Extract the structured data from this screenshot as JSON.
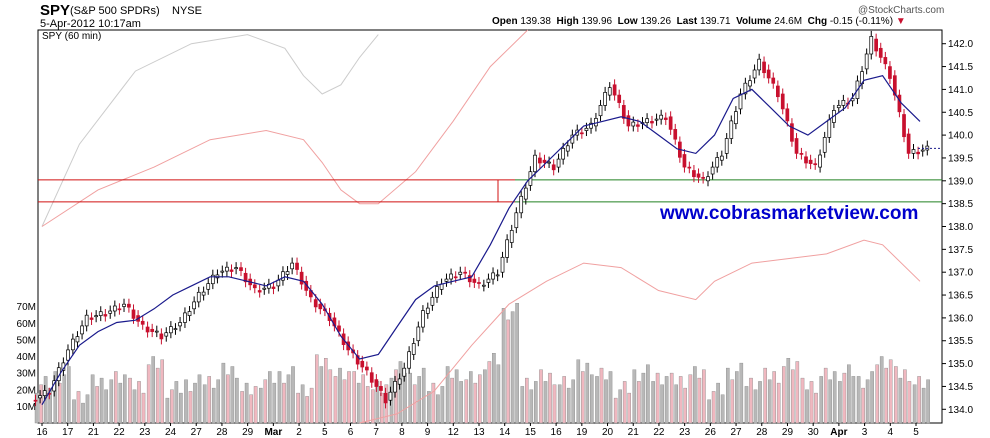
{
  "header": {
    "symbol": "SPY",
    "name": "(S&P 500 SPDRs)",
    "exchange": "NYSE",
    "datetime": "5-Apr-2012 10:17am",
    "copyright": "@StockCharts.com",
    "quote": {
      "open_label": "Open",
      "open": "139.38",
      "high_label": "High",
      "high": "139.96",
      "low_label": "Low",
      "low": "139.26",
      "last_label": "Last",
      "last": "139.71",
      "volume_label": "Volume",
      "volume": "24.6M",
      "chg_label": "Chg",
      "chg": "-0.15 (-0.11%)"
    },
    "series_label": "SPY (60 min)"
  },
  "watermark": "www.cobrasmarketview.com",
  "colors": {
    "up": "#000000",
    "down": "#c8102e",
    "ma": "#1a1a8c",
    "envelope": "#f0a0a0",
    "ghost": "#cccccc",
    "red_line": "#d01010",
    "green_line": "#208020",
    "watermark": "#0000cc",
    "vol_up": "#b8b8b8",
    "vol_down": "#f0b8c0"
  },
  "chart_data": {
    "type": "candlestick",
    "title": "SPY (60 min)",
    "price_axis": {
      "ticks": [
        "142.0",
        "141.5",
        "141.0",
        "140.5",
        "140.0",
        "139.5",
        "139.0",
        "138.5",
        "138.0",
        "137.5",
        "137.0",
        "136.5",
        "136.0",
        "135.5",
        "135.0",
        "134.5",
        "134.0"
      ],
      "range": [
        133.7,
        142.3
      ]
    },
    "volume_axis": {
      "ticks": [
        "70M",
        "60M",
        "50M",
        "40M",
        "30M",
        "20M",
        "10M"
      ],
      "range": [
        0,
        80
      ]
    },
    "x_ticks": [
      "16",
      "17",
      "21",
      "22",
      "23",
      "24",
      "27",
      "28",
      "29",
      "Mar",
      "2",
      "5",
      "6",
      "7",
      "8",
      "9",
      "12",
      "13",
      "14",
      "15",
      "16",
      "19",
      "20",
      "21",
      "22",
      "23",
      "26",
      "27",
      "28",
      "29",
      "30",
      "Apr",
      "3",
      "4",
      "5"
    ],
    "bold_x_ticks": [
      "Mar",
      "Apr"
    ],
    "horizontal_levels": [
      {
        "price": 139.02,
        "color": "red"
      },
      {
        "price": 138.54,
        "color": "red"
      },
      {
        "price": 139.02,
        "color": "green"
      },
      {
        "price": 138.54,
        "color": "green"
      }
    ],
    "close_path": [
      [
        0,
        134.4
      ],
      [
        1,
        135.3
      ],
      [
        2,
        136.0
      ],
      [
        3,
        136.1
      ],
      [
        4,
        136.3
      ],
      [
        5,
        135.8
      ],
      [
        6,
        135.6
      ],
      [
        7,
        135.9
      ],
      [
        8,
        136.5
      ],
      [
        9,
        137.0
      ],
      [
        10,
        137.1
      ],
      [
        11,
        136.6
      ],
      [
        12,
        136.7
      ],
      [
        13,
        137.2
      ],
      [
        14,
        136.4
      ],
      [
        15,
        136.0
      ],
      [
        16,
        135.3
      ],
      [
        17,
        134.8
      ],
      [
        18,
        134.2
      ],
      [
        19,
        134.9
      ],
      [
        20,
        136.1
      ],
      [
        21,
        136.8
      ],
      [
        22,
        137.0
      ],
      [
        23,
        136.7
      ],
      [
        24,
        137.0
      ],
      [
        25,
        138.3
      ],
      [
        26,
        139.5
      ],
      [
        27,
        139.3
      ],
      [
        28,
        140.0
      ],
      [
        29,
        140.2
      ],
      [
        30,
        141.1
      ],
      [
        31,
        140.2
      ],
      [
        32,
        140.3
      ],
      [
        33,
        140.4
      ],
      [
        34,
        139.3
      ],
      [
        35,
        139.0
      ],
      [
        36,
        139.6
      ],
      [
        37,
        140.9
      ],
      [
        38,
        141.6
      ],
      [
        39,
        140.9
      ],
      [
        40,
        139.6
      ],
      [
        41,
        139.3
      ],
      [
        42,
        140.6
      ],
      [
        43,
        140.8
      ],
      [
        44,
        142.1
      ],
      [
        45,
        141.3
      ],
      [
        46,
        139.6
      ],
      [
        47,
        139.7
      ]
    ],
    "ma_path": [
      [
        0,
        134.1
      ],
      [
        1,
        134.8
      ],
      [
        2,
        135.4
      ],
      [
        3,
        135.7
      ],
      [
        4,
        135.9
      ],
      [
        5,
        135.95
      ],
      [
        6,
        136.2
      ],
      [
        7,
        136.5
      ],
      [
        8,
        136.7
      ],
      [
        9,
        136.9
      ],
      [
        10,
        136.9
      ],
      [
        11,
        136.8
      ],
      [
        12,
        136.7
      ],
      [
        13,
        136.9
      ],
      [
        14,
        136.8
      ],
      [
        15,
        136.3
      ],
      [
        16,
        135.6
      ],
      [
        17,
        135.1
      ],
      [
        18,
        135.2
      ],
      [
        19,
        135.8
      ],
      [
        20,
        136.4
      ],
      [
        21,
        136.7
      ],
      [
        22,
        136.8
      ],
      [
        23,
        136.9
      ],
      [
        24,
        137.6
      ],
      [
        25,
        138.4
      ],
      [
        26,
        139.0
      ],
      [
        27,
        139.4
      ],
      [
        28,
        139.8
      ],
      [
        29,
        140.2
      ],
      [
        30,
        140.3
      ],
      [
        31,
        140.4
      ],
      [
        32,
        140.3
      ],
      [
        33,
        140.0
      ],
      [
        34,
        139.7
      ],
      [
        35,
        139.6
      ],
      [
        36,
        140.0
      ],
      [
        37,
        140.8
      ],
      [
        38,
        141.0
      ],
      [
        39,
        140.6
      ],
      [
        40,
        140.2
      ],
      [
        41,
        140.0
      ],
      [
        42,
        140.3
      ],
      [
        43,
        140.6
      ],
      [
        44,
        141.2
      ],
      [
        45,
        141.3
      ],
      [
        46,
        140.7
      ],
      [
        47,
        140.3
      ]
    ],
    "ghost_path": [
      [
        0,
        138.0
      ],
      [
        2,
        139.8
      ],
      [
        5,
        141.4
      ],
      [
        8,
        142.0
      ],
      [
        11,
        142.2
      ],
      [
        13,
        141.9
      ],
      [
        14,
        141.3
      ],
      [
        15,
        140.9
      ],
      [
        16,
        141.1
      ],
      [
        17,
        141.7
      ],
      [
        18,
        142.2
      ]
    ],
    "env_upper_path": [
      [
        0,
        138.0
      ],
      [
        3,
        138.8
      ],
      [
        6,
        139.3
      ],
      [
        9,
        139.9
      ],
      [
        12,
        140.1
      ],
      [
        14,
        139.9
      ],
      [
        15,
        139.4
      ],
      [
        16,
        138.8
      ],
      [
        17,
        138.5
      ],
      [
        18,
        138.5
      ],
      [
        20,
        139.2
      ],
      [
        22,
        140.3
      ],
      [
        24,
        141.5
      ],
      [
        26,
        142.3
      ]
    ],
    "env_lower_path": [
      [
        17,
        133.7
      ],
      [
        19,
        133.9
      ],
      [
        21,
        134.4
      ],
      [
        23,
        135.4
      ],
      [
        25,
        136.3
      ],
      [
        27,
        136.8
      ],
      [
        29,
        137.2
      ],
      [
        31,
        137.1
      ],
      [
        33,
        136.6
      ],
      [
        35,
        136.4
      ],
      [
        36,
        136.8
      ],
      [
        38,
        137.2
      ],
      [
        40,
        137.3
      ],
      [
        42,
        137.4
      ],
      [
        44,
        137.7
      ],
      [
        45,
        137.6
      ],
      [
        47,
        136.8
      ]
    ],
    "volume_levels": [
      24,
      30,
      18,
      26,
      28,
      22,
      35,
      20,
      24,
      26,
      32,
      20,
      27,
      30,
      22,
      38,
      30,
      26,
      20,
      32,
      28,
      22,
      30,
      27,
      38,
      68,
      26,
      29,
      25,
      33,
      28,
      20,
      30,
      28,
      26,
      30,
      20,
      32,
      26,
      30,
      36,
      22,
      28,
      30,
      26,
      38,
      30,
      24
    ]
  }
}
